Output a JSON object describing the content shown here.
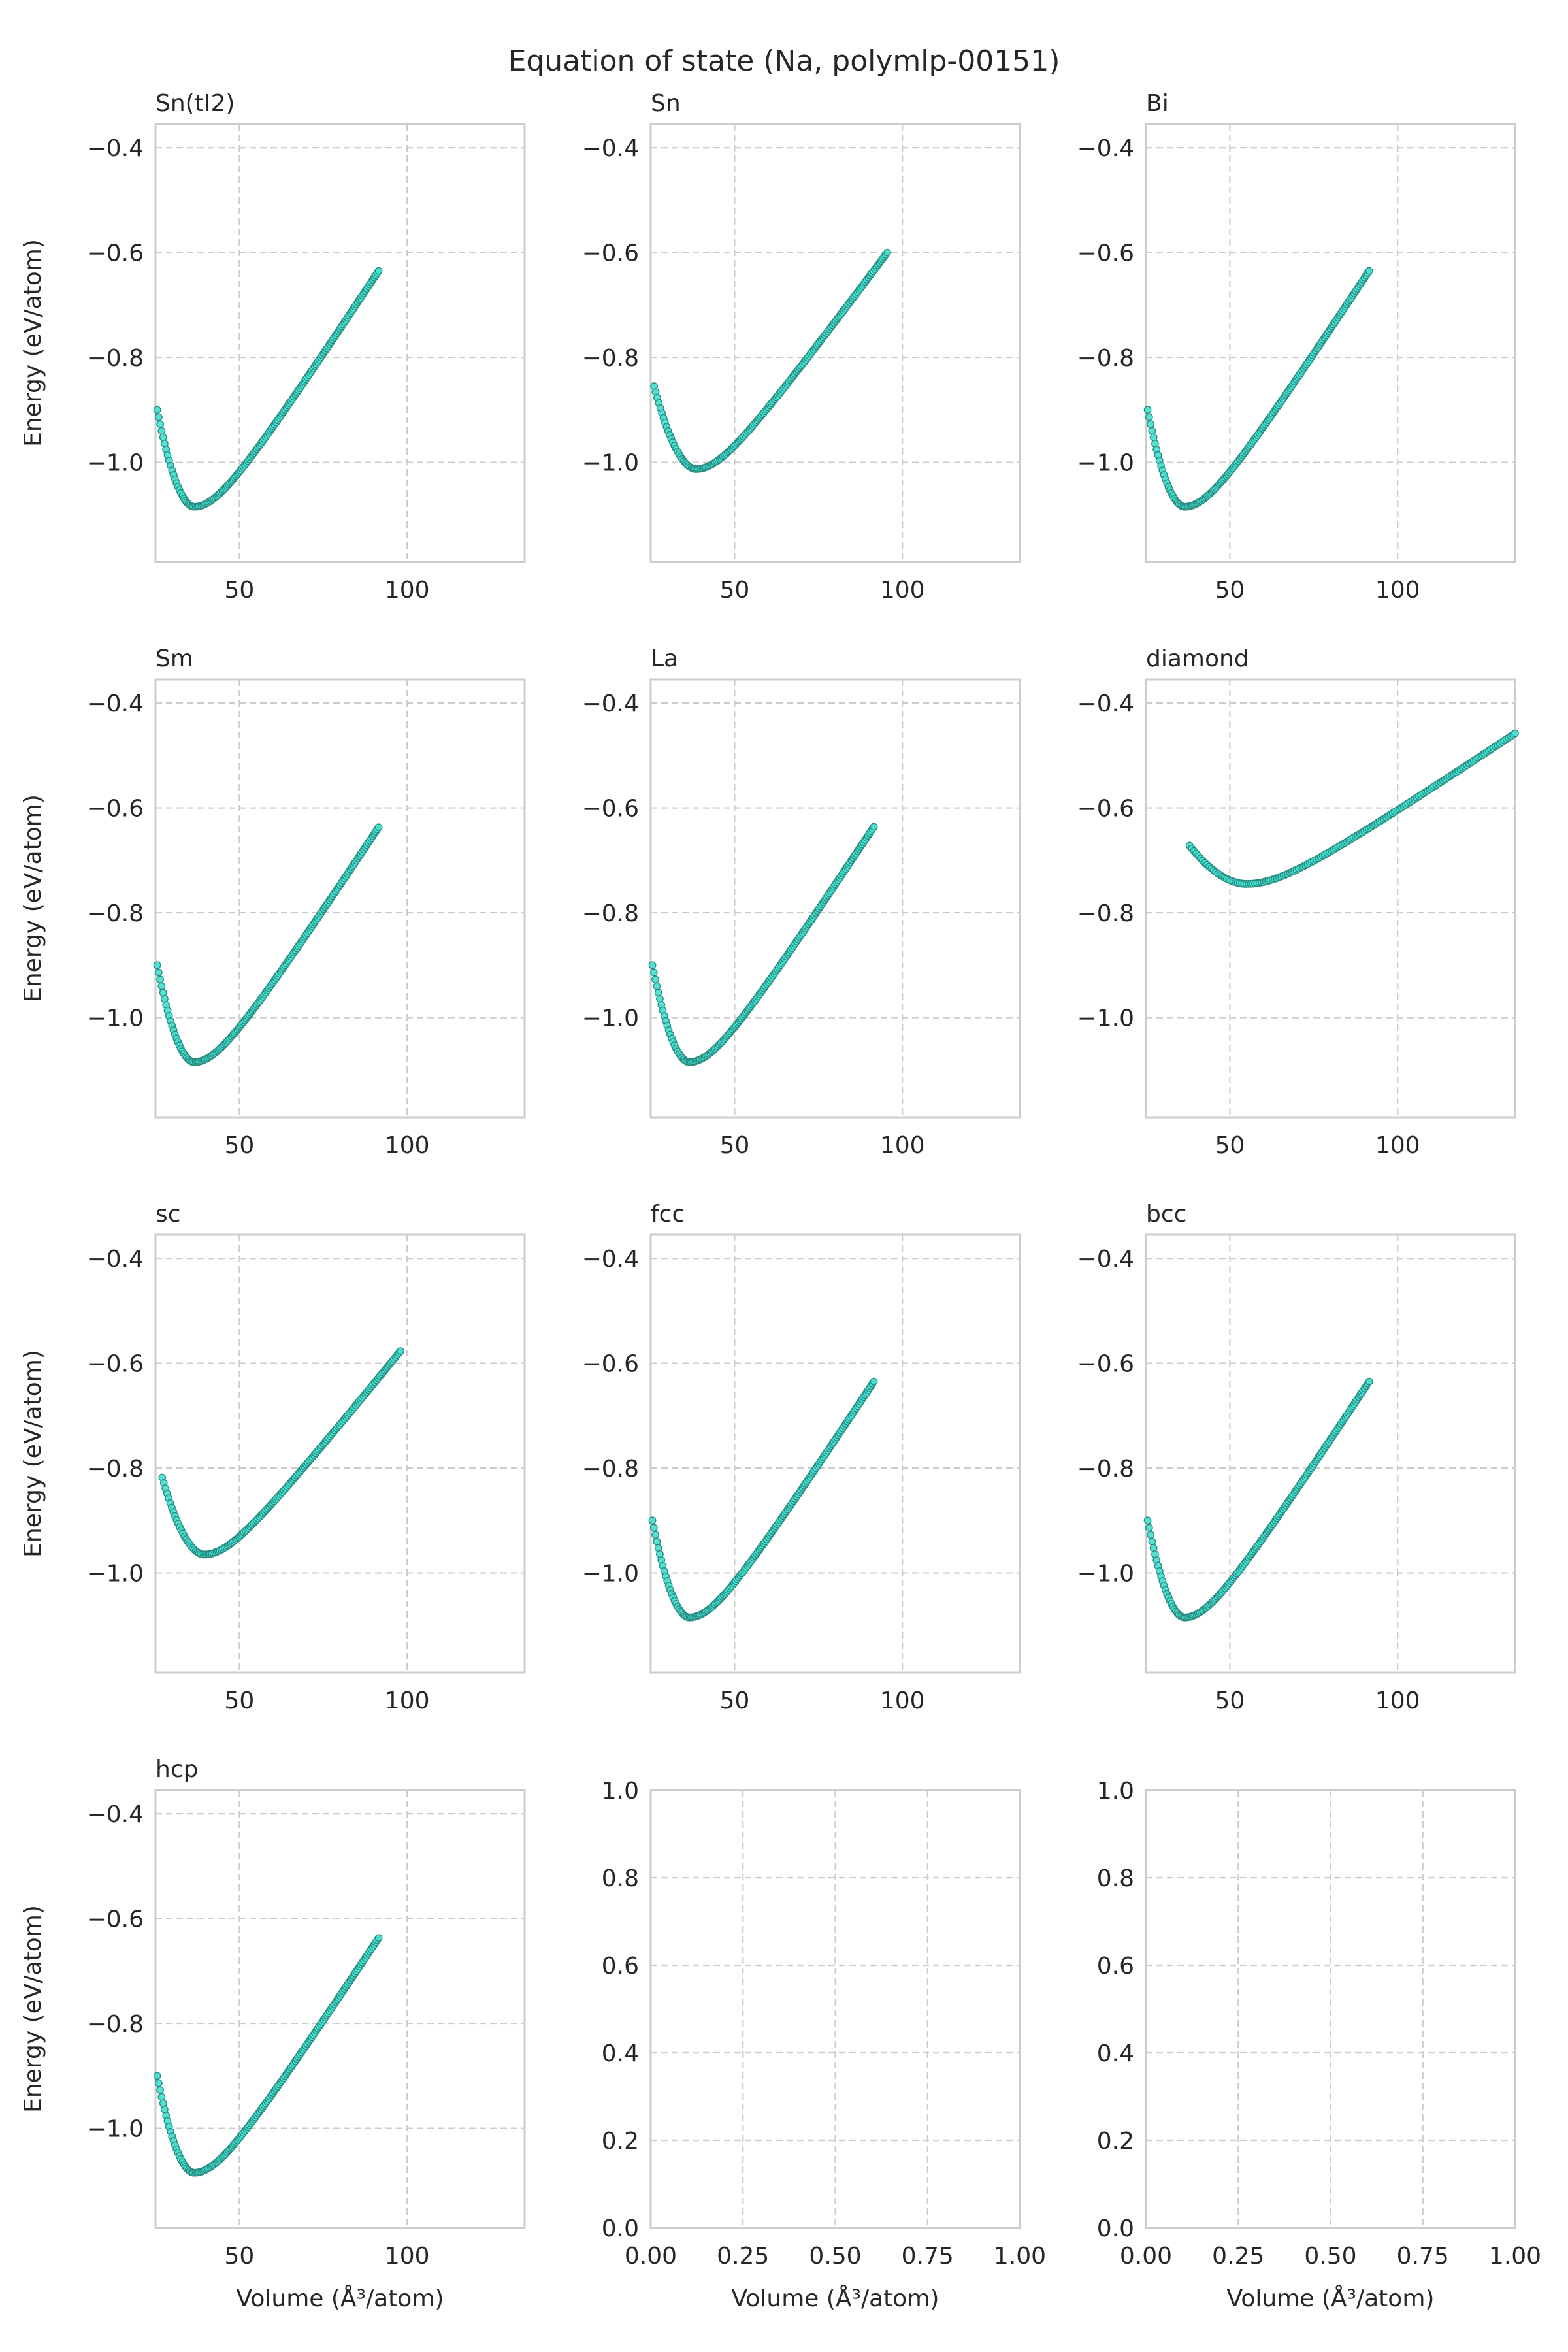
{
  "figure_title": "Equation of state (Na, polymlp-00151)",
  "marker_color": "#40e0d0",
  "marker_edge_color": "#2a8c80",
  "grid_color": "#cccccc",
  "chart_data": [
    {
      "type": "scatter",
      "title": "Sn(tI2)",
      "ylabel": "Energy (eV/atom)",
      "xlabel": "",
      "xlim": [
        25,
        135
      ],
      "ylim": [
        -1.19,
        -0.355
      ],
      "xticks": [
        50,
        100
      ],
      "yticks": [
        -0.4,
        -0.6,
        -0.8,
        -1.0
      ],
      "xtick_labels": [
        "50",
        "100"
      ],
      "ytick_labels": [
        "−0.4",
        "−0.6",
        "−0.8",
        "−1.0"
      ],
      "curve": {
        "v0": 36.5,
        "e0": -1.085,
        "vmin": 25.5,
        "vmax": 91.5,
        "emin_at_vmin": -0.9,
        "e_at_vmax": -0.635
      }
    },
    {
      "type": "scatter",
      "title": "Sn",
      "ylabel": "",
      "xlabel": "",
      "xlim": [
        25,
        135
      ],
      "ylim": [
        -1.19,
        -0.355
      ],
      "xticks": [
        50,
        100
      ],
      "yticks": [
        -0.4,
        -0.6,
        -0.8,
        -1.0
      ],
      "xtick_labels": [
        "50",
        "100"
      ],
      "ytick_labels": [
        "−0.4",
        "−0.6",
        "−0.8",
        "−1.0"
      ],
      "curve": {
        "v0": 38.5,
        "e0": -1.013,
        "vmin": 26,
        "vmax": 95.5,
        "emin_at_vmin": -0.855,
        "e_at_vmax": -0.6
      }
    },
    {
      "type": "scatter",
      "title": "Bi",
      "ylabel": "",
      "xlabel": "",
      "xlim": [
        25,
        135
      ],
      "ylim": [
        -1.19,
        -0.355
      ],
      "xticks": [
        50,
        100
      ],
      "yticks": [
        -0.4,
        -0.6,
        -0.8,
        -1.0
      ],
      "xtick_labels": [
        "50",
        "100"
      ],
      "ytick_labels": [
        "−0.4",
        "−0.6",
        "−0.8",
        "−1.0"
      ],
      "curve": {
        "v0": 36.5,
        "e0": -1.085,
        "vmin": 25.5,
        "vmax": 91.5,
        "emin_at_vmin": -0.9,
        "e_at_vmax": -0.635
      }
    },
    {
      "type": "scatter",
      "title": "Sm",
      "ylabel": "Energy (eV/atom)",
      "xlabel": "",
      "xlim": [
        25,
        135
      ],
      "ylim": [
        -1.19,
        -0.355
      ],
      "xticks": [
        50,
        100
      ],
      "yticks": [
        -0.4,
        -0.6,
        -0.8,
        -1.0
      ],
      "xtick_labels": [
        "50",
        "100"
      ],
      "ytick_labels": [
        "−0.4",
        "−0.6",
        "−0.8",
        "−1.0"
      ],
      "curve": {
        "v0": 36.5,
        "e0": -1.085,
        "vmin": 25.5,
        "vmax": 91.5,
        "emin_at_vmin": -0.9,
        "e_at_vmax": -0.637
      }
    },
    {
      "type": "scatter",
      "title": "La",
      "ylabel": "",
      "xlabel": "",
      "xlim": [
        25,
        135
      ],
      "ylim": [
        -1.19,
        -0.355
      ],
      "xticks": [
        50,
        100
      ],
      "yticks": [
        -0.4,
        -0.6,
        -0.8,
        -1.0
      ],
      "xtick_labels": [
        "50",
        "100"
      ],
      "ytick_labels": [
        "−0.4",
        "−0.6",
        "−0.8",
        "−1.0"
      ],
      "curve": {
        "v0": 36.5,
        "e0": -1.085,
        "vmin": 25.5,
        "vmax": 91.5,
        "emin_at_vmin": -0.9,
        "e_at_vmax": -0.636
      }
    },
    {
      "type": "scatter",
      "title": "diamond",
      "ylabel": "",
      "xlabel": "",
      "xlim": [
        25,
        135
      ],
      "ylim": [
        -1.19,
        -0.355
      ],
      "xticks": [
        50,
        100
      ],
      "yticks": [
        -0.4,
        -0.6,
        -0.8,
        -1.0
      ],
      "xtick_labels": [
        "50",
        "100"
      ],
      "ytick_labels": [
        "−0.4",
        "−0.6",
        "−0.8",
        "−1.0"
      ],
      "curve": {
        "v0": 55,
        "e0": -0.745,
        "vmin": 38,
        "vmax": 135,
        "emin_at_vmin": -0.672,
        "e_at_vmax": -0.458
      }
    },
    {
      "type": "scatter",
      "title": "sc",
      "ylabel": "Energy (eV/atom)",
      "xlabel": "",
      "xlim": [
        25,
        135
      ],
      "ylim": [
        -1.19,
        -0.355
      ],
      "xticks": [
        50,
        100
      ],
      "yticks": [
        -0.4,
        -0.6,
        -0.8,
        -1.0
      ],
      "xtick_labels": [
        "50",
        "100"
      ],
      "ytick_labels": [
        "−0.4",
        "−0.6",
        "−0.8",
        "−1.0"
      ],
      "curve": {
        "v0": 39.5,
        "e0": -0.965,
        "vmin": 27,
        "vmax": 98,
        "emin_at_vmin": -0.818,
        "e_at_vmax": -0.577
      }
    },
    {
      "type": "scatter",
      "title": "fcc",
      "ylabel": "",
      "xlabel": "",
      "xlim": [
        25,
        135
      ],
      "ylim": [
        -1.19,
        -0.355
      ],
      "xticks": [
        50,
        100
      ],
      "yticks": [
        -0.4,
        -0.6,
        -0.8,
        -1.0
      ],
      "xtick_labels": [
        "50",
        "100"
      ],
      "ytick_labels": [
        "−0.4",
        "−0.6",
        "−0.8",
        "−1.0"
      ],
      "curve": {
        "v0": 36.5,
        "e0": -1.085,
        "vmin": 25.5,
        "vmax": 91.5,
        "emin_at_vmin": -0.9,
        "e_at_vmax": -0.635
      }
    },
    {
      "type": "scatter",
      "title": "bcc",
      "ylabel": "",
      "xlabel": "",
      "xlim": [
        25,
        135
      ],
      "ylim": [
        -1.19,
        -0.355
      ],
      "xticks": [
        50,
        100
      ],
      "yticks": [
        -0.4,
        -0.6,
        -0.8,
        -1.0
      ],
      "xtick_labels": [
        "50",
        "100"
      ],
      "ytick_labels": [
        "−0.4",
        "−0.6",
        "−0.8",
        "−1.0"
      ],
      "curve": {
        "v0": 36.5,
        "e0": -1.085,
        "vmin": 25.5,
        "vmax": 91.5,
        "emin_at_vmin": -0.9,
        "e_at_vmax": -0.635
      }
    },
    {
      "type": "scatter",
      "title": "hcp",
      "ylabel": "Energy (eV/atom)",
      "xlabel": "Volume (Å³/atom)",
      "xlim": [
        25,
        135
      ],
      "ylim": [
        -1.19,
        -0.355
      ],
      "xticks": [
        50,
        100
      ],
      "yticks": [
        -0.4,
        -0.6,
        -0.8,
        -1.0
      ],
      "xtick_labels": [
        "50",
        "100"
      ],
      "ytick_labels": [
        "−0.4",
        "−0.6",
        "−0.8",
        "−1.0"
      ],
      "curve": {
        "v0": 36.5,
        "e0": -1.085,
        "vmin": 25.5,
        "vmax": 91.5,
        "emin_at_vmin": -0.9,
        "e_at_vmax": -0.637
      }
    },
    {
      "type": "scatter",
      "title": "",
      "ylabel": "",
      "xlabel": "Volume (Å³/atom)",
      "xlim": [
        0,
        1
      ],
      "ylim": [
        0,
        1
      ],
      "xticks": [
        0,
        0.25,
        0.5,
        0.75,
        1.0
      ],
      "yticks": [
        0,
        0.2,
        0.4,
        0.6,
        0.8,
        1.0
      ],
      "xtick_labels": [
        "0.00",
        "0.25",
        "0.50",
        "0.75",
        "1.00"
      ],
      "ytick_labels": [
        "0.0",
        "0.2",
        "0.4",
        "0.6",
        "0.8",
        "1.0"
      ],
      "curve": null
    },
    {
      "type": "scatter",
      "title": "",
      "ylabel": "",
      "xlabel": "Volume (Å³/atom)",
      "xlim": [
        0,
        1
      ],
      "ylim": [
        0,
        1
      ],
      "xticks": [
        0,
        0.25,
        0.5,
        0.75,
        1.0
      ],
      "yticks": [
        0,
        0.2,
        0.4,
        0.6,
        0.8,
        1.0
      ],
      "xtick_labels": [
        "0.00",
        "0.25",
        "0.50",
        "0.75",
        "1.00"
      ],
      "ytick_labels": [
        "0.0",
        "0.2",
        "0.4",
        "0.6",
        "0.8",
        "1.0"
      ],
      "curve": null
    }
  ]
}
